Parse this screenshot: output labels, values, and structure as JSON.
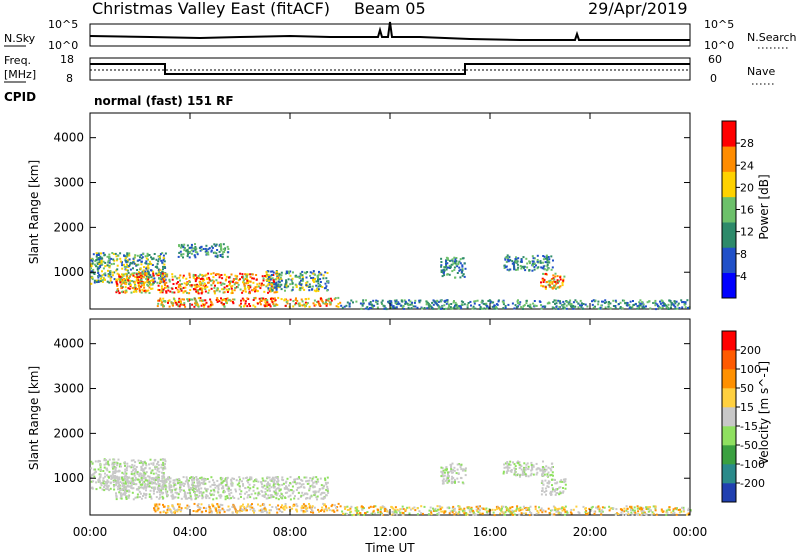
{
  "header": {
    "station": "Christmas Valley East (fitACF)",
    "beam": "Beam 05",
    "date": "29/Apr/2019"
  },
  "top_panels": {
    "nsky_label": "N.Sky",
    "nsky_ticks": [
      "10^5",
      "10^0"
    ],
    "nsearch_label": "N.Search",
    "nsearch_ticks": [
      "10^5",
      "10^0"
    ],
    "freq_label": "Freq.",
    "freq_unit": "[MHz]",
    "freq_ticks": [
      "18",
      "8"
    ],
    "nave_label": "Nave",
    "nave_ticks": [
      "60",
      "0"
    ],
    "cpid_label": "CPID",
    "cpid_text": "normal (fast) 151 RF"
  },
  "chart_data": [
    {
      "type": "heatmap",
      "name": "power",
      "ylabel": "Slant Range [km]",
      "yticks": [
        "4000",
        "3000",
        "2000",
        "1000"
      ],
      "ytick_values": [
        4000,
        3000,
        2000,
        1000
      ],
      "ylim": [
        180,
        4550
      ],
      "xlim_hours": [
        0,
        24
      ],
      "colorbar": {
        "label": "Power [dB]",
        "ticks": [
          "28",
          "24",
          "20",
          "16",
          "12",
          "8",
          "4"
        ],
        "colors": [
          "#0000ff",
          "#2050c8",
          "#2d8a6a",
          "#6cc06a",
          "#ffd200",
          "#ff8c00",
          "#ff0000"
        ]
      },
      "regions": [
        {
          "t0": 0.0,
          "t1": 3.0,
          "r0": 750,
          "r1": 1450,
          "level": "mid"
        },
        {
          "t0": 1.0,
          "t1": 7.5,
          "r0": 550,
          "r1": 1000,
          "level": "high"
        },
        {
          "t0": 7.0,
          "t1": 9.5,
          "r0": 600,
          "r1": 1050,
          "level": "mid"
        },
        {
          "t0": 3.5,
          "t1": 5.5,
          "r0": 1350,
          "r1": 1650,
          "level": "low"
        },
        {
          "t0": 18.0,
          "t1": 19.0,
          "r0": 650,
          "r1": 1000,
          "level": "high"
        },
        {
          "t0": 14.0,
          "t1": 15.0,
          "r0": 900,
          "r1": 1350,
          "level": "low"
        },
        {
          "t0": 16.5,
          "t1": 18.5,
          "r0": 1050,
          "r1": 1400,
          "level": "low"
        },
        {
          "t0": 2.5,
          "t1": 10.0,
          "r0": 250,
          "r1": 450,
          "level": "high"
        },
        {
          "t0": 10.0,
          "t1": 24.0,
          "r0": 200,
          "r1": 400,
          "level": "low"
        }
      ]
    },
    {
      "type": "heatmap",
      "name": "velocity",
      "ylabel": "Slant Range [km]",
      "yticks": [
        "4000",
        "3000",
        "2000",
        "1000"
      ],
      "ytick_values": [
        4000,
        3000,
        2000,
        1000
      ],
      "ylim": [
        180,
        4550
      ],
      "xlim_hours": [
        0,
        24
      ],
      "colorbar": {
        "label": "Velocity [m s^-1]",
        "ticks": [
          "200",
          "100",
          "50",
          "15",
          "-15",
          "-50",
          "-100",
          "-200"
        ],
        "colors": [
          "#2040b0",
          "#2a8a8a",
          "#3aa040",
          "#8fe060",
          "#c8c8c8",
          "#ffd040",
          "#ff9000",
          "#ff5a00",
          "#ff0000"
        ]
      },
      "regions": [
        {
          "t0": 0.0,
          "t1": 3.0,
          "r0": 750,
          "r1": 1450,
          "level": "gray"
        },
        {
          "t0": 1.0,
          "t1": 9.5,
          "r0": 550,
          "r1": 1050,
          "level": "gray"
        },
        {
          "t0": 18.0,
          "t1": 19.0,
          "r0": 650,
          "r1": 1000,
          "level": "gray"
        },
        {
          "t0": 14.0,
          "t1": 15.0,
          "r0": 900,
          "r1": 1350,
          "level": "gray"
        },
        {
          "t0": 16.5,
          "t1": 18.5,
          "r0": 1050,
          "r1": 1400,
          "level": "gray"
        },
        {
          "t0": 2.5,
          "t1": 10.0,
          "r0": 250,
          "r1": 450,
          "level": "orange"
        },
        {
          "t0": 10.0,
          "t1": 24.0,
          "r0": 200,
          "r1": 400,
          "level": "yellow"
        }
      ]
    }
  ],
  "xaxis": {
    "label": "Time UT",
    "ticks": [
      "00:00",
      "04:00",
      "08:00",
      "12:00",
      "16:00",
      "20:00",
      "00:00"
    ],
    "tick_hours": [
      0,
      4,
      8,
      12,
      16,
      20,
      24
    ]
  }
}
